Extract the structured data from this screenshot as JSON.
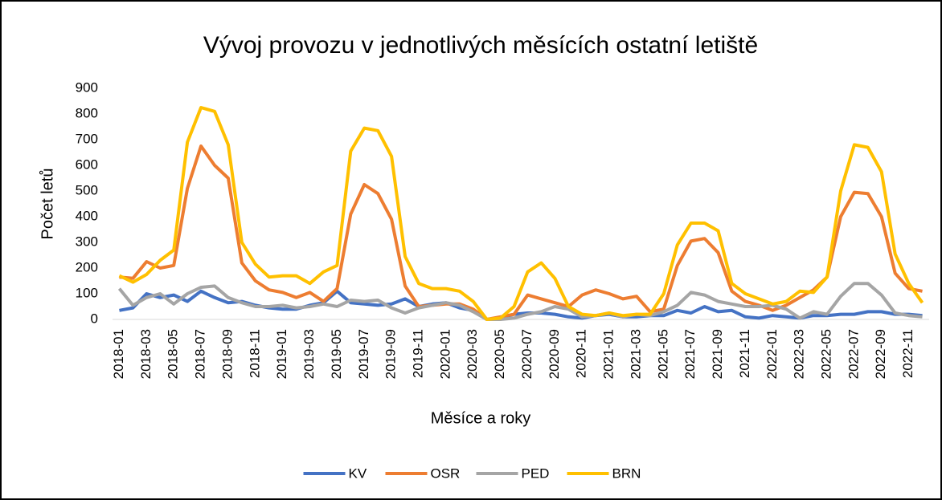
{
  "chart_data": {
    "type": "line",
    "title": "Vývoj provozu v jednotlivých měsících ostatní letiště",
    "xlabel": "Měsíce a roky",
    "ylabel": "Počet letů",
    "categories": [
      "2018-01",
      null,
      "2018-03",
      null,
      "2018-05",
      null,
      "2018-07",
      null,
      "2018-09",
      null,
      "2018-11",
      null,
      "2019-01",
      null,
      "2019-03",
      null,
      "2019-05",
      null,
      "2019-07",
      null,
      "2019-09",
      null,
      "2019-11",
      null,
      "2020-01",
      null,
      "2020-03",
      null,
      "2020-05",
      null,
      "2020-07",
      null,
      "2020-09",
      null,
      "2020-11",
      null,
      "2021-01",
      null,
      "2021-03",
      null,
      "2021-05",
      null,
      "2021-07",
      null,
      "2021-09",
      null,
      "2021-11",
      null,
      "2022-01",
      null,
      "2022-03",
      null,
      "2022-05",
      null,
      "2022-07",
      null,
      "2022-09",
      null,
      "2022-11",
      null
    ],
    "ylim": [
      0,
      900
    ],
    "yticks": [
      0,
      100,
      200,
      300,
      400,
      500,
      600,
      700,
      800,
      900
    ],
    "legend": "bottom",
    "series": [
      {
        "name": "KV",
        "color": "#4472c4",
        "values": [
          35,
          45,
          100,
          85,
          95,
          70,
          110,
          85,
          65,
          70,
          55,
          45,
          40,
          40,
          55,
          65,
          110,
          65,
          60,
          55,
          60,
          80,
          50,
          60,
          65,
          45,
          35,
          0,
          5,
          20,
          25,
          25,
          20,
          10,
          5,
          15,
          20,
          10,
          10,
          15,
          15,
          35,
          25,
          50,
          30,
          35,
          10,
          5,
          15,
          10,
          5,
          15,
          15,
          20,
          20,
          30,
          30,
          20,
          20,
          15
        ]
      },
      {
        "name": "OSR",
        "color": "#ed7d31",
        "values": [
          165,
          160,
          225,
          200,
          210,
          510,
          675,
          600,
          550,
          220,
          150,
          115,
          105,
          85,
          105,
          70,
          120,
          410,
          525,
          490,
          390,
          130,
          50,
          55,
          60,
          60,
          40,
          0,
          10,
          20,
          95,
          80,
          65,
          50,
          95,
          115,
          100,
          80,
          90,
          30,
          40,
          210,
          305,
          315,
          260,
          110,
          70,
          55,
          35,
          55,
          85,
          115,
          165,
          400,
          495,
          490,
          400,
          180,
          120,
          110
        ]
      },
      {
        "name": "PED",
        "color": "#a5a5a5",
        "values": [
          120,
          55,
          85,
          100,
          60,
          100,
          125,
          130,
          85,
          65,
          50,
          50,
          55,
          45,
          50,
          60,
          50,
          75,
          70,
          75,
          45,
          25,
          45,
          55,
          65,
          55,
          30,
          0,
          0,
          5,
          20,
          30,
          50,
          40,
          10,
          15,
          25,
          10,
          20,
          15,
          30,
          55,
          105,
          95,
          70,
          60,
          50,
          50,
          55,
          40,
          5,
          30,
          20,
          90,
          140,
          140,
          95,
          25,
          15,
          10
        ]
      },
      {
        "name": "BRN",
        "color": "#ffc000",
        "values": [
          170,
          145,
          175,
          230,
          270,
          690,
          825,
          810,
          680,
          300,
          215,
          165,
          170,
          170,
          140,
          185,
          210,
          655,
          745,
          735,
          635,
          245,
          140,
          120,
          120,
          110,
          70,
          0,
          5,
          50,
          185,
          220,
          160,
          50,
          20,
          15,
          25,
          15,
          20,
          20,
          100,
          290,
          375,
          375,
          345,
          140,
          100,
          80,
          60,
          70,
          110,
          105,
          165,
          500,
          680,
          670,
          575,
          255,
          140,
          65
        ]
      }
    ]
  }
}
